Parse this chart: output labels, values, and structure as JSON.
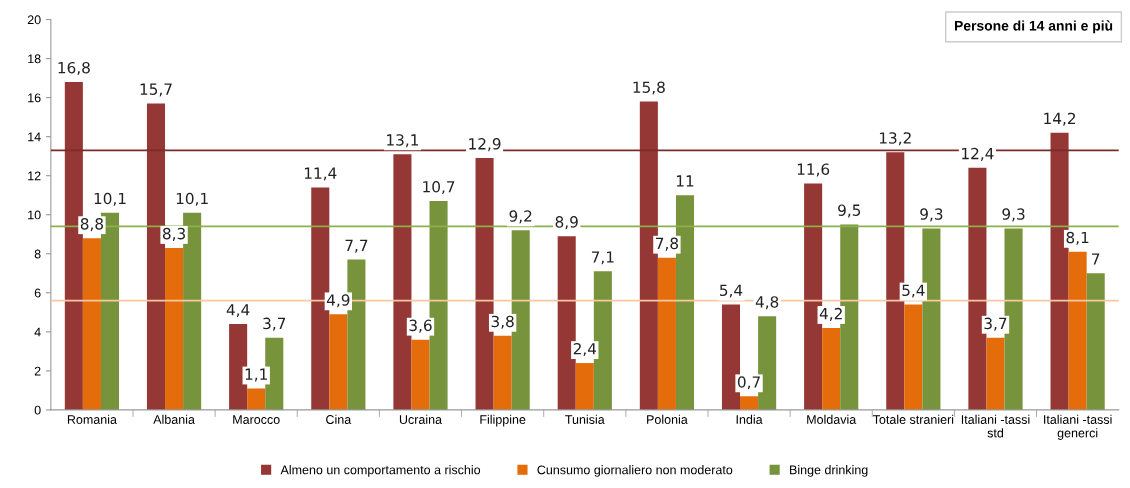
{
  "chart_data": {
    "type": "bar",
    "title": "Persone di 14 anni e più",
    "categories": [
      "Romania",
      "Albania",
      "Marocco",
      "Cina",
      "Ucraina",
      "Filippine",
      "Tunisia",
      "Polonia",
      "India",
      "Moldavia",
      "Totale stranieri",
      "Italiani -tassi\nstd",
      "Italiani -tassi\ngenerci"
    ],
    "series": [
      {
        "name": "Almeno un comportamento a rischio",
        "color": "#953735",
        "values": [
          16.8,
          15.7,
          4.4,
          11.4,
          13.1,
          12.9,
          8.9,
          15.8,
          5.4,
          11.6,
          13.2,
          12.4,
          14.2
        ],
        "value_labels": [
          "16,8",
          "15,7",
          "4,4",
          "11,4",
          "13,1",
          "12,9",
          "8,9",
          "15,8",
          "5,4",
          "11,6",
          "13,2",
          "12,4",
          "14,2"
        ]
      },
      {
        "name": "Cunsumo giornaliero non moderato",
        "color": "#e46c0a",
        "values": [
          8.8,
          8.3,
          1.1,
          4.9,
          3.6,
          3.8,
          2.4,
          7.8,
          0.7,
          4.2,
          5.4,
          3.7,
          8.1
        ],
        "value_labels": [
          "8,8",
          "8,3",
          "1,1",
          "4,9",
          "3,6",
          "3,8",
          "2,4",
          "7,8",
          "0,7",
          "4,2",
          "5,4",
          "3,7",
          "8,1"
        ]
      },
      {
        "name": "Binge drinking",
        "color": "#77933c",
        "values": [
          10.1,
          10.1,
          3.7,
          7.7,
          10.7,
          9.2,
          7.1,
          11,
          4.8,
          9.5,
          9.3,
          9.3,
          7
        ],
        "value_labels": [
          "10,1",
          "10,1",
          "3,7",
          "7,7",
          "10,7",
          "9,2",
          "7,1",
          "11",
          "4,8",
          "9,5",
          "9,3",
          "9,3",
          "7"
        ]
      }
    ],
    "ref_lines": [
      {
        "axis": "y",
        "value": 13.3,
        "color": "#7b2c2a"
      },
      {
        "axis": "y",
        "value": 9.4,
        "color": "#8db04a"
      },
      {
        "axis": "y",
        "value": 5.6,
        "color": "#f8c8a0"
      }
    ],
    "ylim": [
      0,
      20
    ],
    "yticks": [
      0,
      2,
      4,
      6,
      8,
      10,
      12,
      14,
      16,
      18,
      20
    ],
    "legend": "bottom"
  }
}
